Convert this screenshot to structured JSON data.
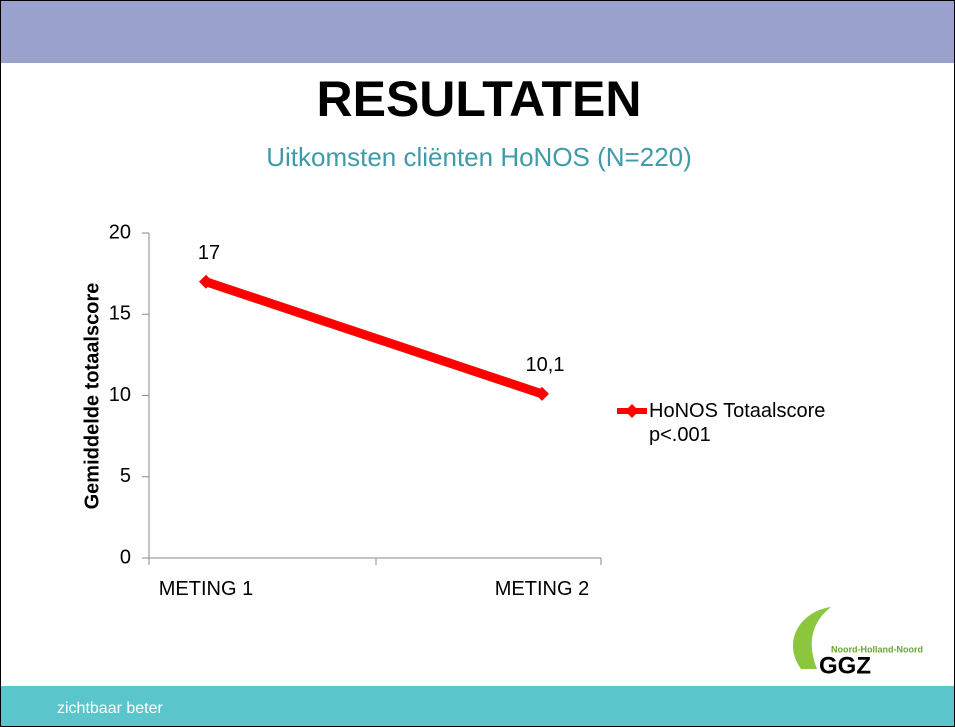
{
  "slide": {
    "title": "RESULTATEN",
    "subtitle": "Uitkomsten cliënten HoNOS (N=220)",
    "footer": "zichtbaar beter",
    "logo": {
      "tagline": "Noord-Holland-Noord",
      "name": "GGZ"
    }
  },
  "chart_data": {
    "type": "line",
    "y_label": "Gemiddelde totaalscore",
    "categories": [
      "METING 1",
      "METING 2"
    ],
    "series": [
      {
        "name": "HoNOS Totaalscore p<.001",
        "color": "#ff0000",
        "values": [
          17,
          10.1
        ],
        "value_labels": [
          "17",
          "10,1"
        ]
      }
    ],
    "ylim": [
      0,
      20
    ],
    "yticks": [
      0,
      5,
      10,
      15,
      20
    ],
    "legend": "right"
  }
}
